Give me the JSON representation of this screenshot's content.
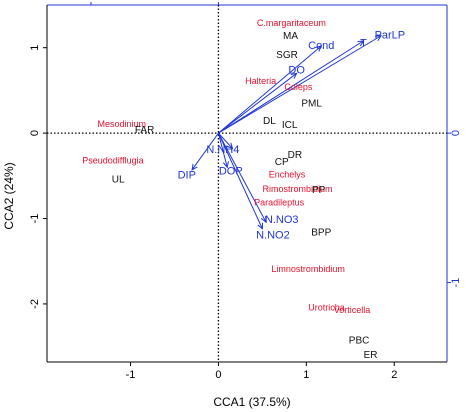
{
  "chart_data": {
    "type": "scatter",
    "title": "",
    "xlabel": "CCA1 (37.5%)",
    "ylabel": "CCA2 (24%)",
    "xlim": [
      -1.95,
      2.6
    ],
    "ylim": [
      -2.68,
      1.5
    ],
    "x_ticks": [
      -1,
      0,
      1,
      2
    ],
    "y_ticks": [
      -2,
      -1,
      0,
      1
    ],
    "right_axis_ticks": [
      0,
      -1
    ],
    "grid": false,
    "colors": {
      "sites": "#111111",
      "species": "#e8112d",
      "env": "#1f36d6",
      "axes": "#000000"
    },
    "sites": [
      {
        "label": "MA",
        "x": 0.82,
        "y": 1.13
      },
      {
        "label": "SGR",
        "x": 0.78,
        "y": 0.91
      },
      {
        "label": "PML",
        "x": 1.06,
        "y": 0.34
      },
      {
        "label": "DL",
        "x": 0.58,
        "y": 0.14
      },
      {
        "label": "ICL",
        "x": 0.81,
        "y": 0.09
      },
      {
        "label": "FAR",
        "x": -0.84,
        "y": 0.03
      },
      {
        "label": "UL",
        "x": -1.14,
        "y": -0.55
      },
      {
        "label": "DR",
        "x": 0.87,
        "y": -0.26
      },
      {
        "label": "CP",
        "x": 0.72,
        "y": -0.34
      },
      {
        "label": "PP",
        "x": 1.14,
        "y": -0.67
      },
      {
        "label": "BPP",
        "x": 1.17,
        "y": -1.17
      },
      {
        "label": "PBC",
        "x": 1.6,
        "y": -2.43
      },
      {
        "label": "ER",
        "x": 1.73,
        "y": -2.6
      }
    ],
    "species": [
      {
        "label": "C.margaritaceum",
        "x": 0.83,
        "y": 1.28
      },
      {
        "label": "Halteria",
        "x": 0.48,
        "y": 0.6
      },
      {
        "label": "Coleps",
        "x": 0.91,
        "y": 0.53
      },
      {
        "label": "Mesodinium",
        "x": -1.1,
        "y": 0.1
      },
      {
        "label": "Pseudodifflugia",
        "x": -1.2,
        "y": -0.33
      },
      {
        "label": "Enchelys",
        "x": 0.78,
        "y": -0.49
      },
      {
        "label": "Rimostrombidium",
        "x": 0.9,
        "y": -0.66
      },
      {
        "label": "Paradileptus",
        "x": 0.69,
        "y": -0.82
      },
      {
        "label": "Limnostrombidium",
        "x": 1.02,
        "y": -1.6
      },
      {
        "label": "Urotricha",
        "x": 1.23,
        "y": -2.05
      },
      {
        "label": "Vorticella",
        "x": 1.52,
        "y": -2.08
      }
    ],
    "env": [
      {
        "label": "ParLP",
        "x": 1.85,
        "y": 1.14,
        "lx": 1.95,
        "ly": 1.14
      },
      {
        "label": "T",
        "x": 1.65,
        "y": 1.08,
        "lx": 1.65,
        "ly": 1.05
      },
      {
        "label": "Cond",
        "x": 1.17,
        "y": 1.02,
        "lx": 1.17,
        "ly": 1.02
      },
      {
        "label": "DO",
        "x": 0.89,
        "y": 0.7,
        "lx": 0.89,
        "ly": 0.73
      },
      {
        "label": "N.NH4",
        "x": 0.16,
        "y": -0.18,
        "lx": 0.05,
        "ly": -0.2
      },
      {
        "label": "DIP",
        "x": -0.3,
        "y": -0.43,
        "lx": -0.36,
        "ly": -0.5
      },
      {
        "label": "DOP",
        "x": 0.1,
        "y": -0.4,
        "lx": 0.14,
        "ly": -0.45
      },
      {
        "label": "N.NO3",
        "x": 0.54,
        "y": -1.04,
        "lx": 0.72,
        "ly": -1.02
      },
      {
        "label": "N.NO2",
        "x": 0.5,
        "y": -1.12,
        "lx": 0.62,
        "ly": -1.2
      }
    ]
  }
}
